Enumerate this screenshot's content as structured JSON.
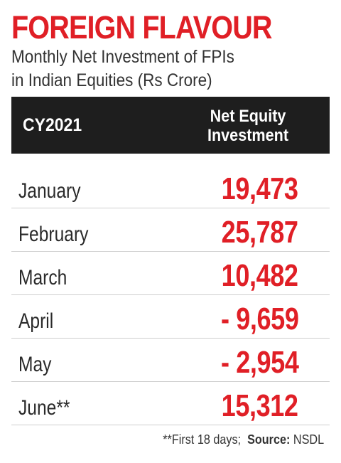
{
  "title": "FOREIGN FLAVOUR",
  "subtitle_line1": "Monthly Net Investment of FPIs",
  "subtitle_line2": "in Indian Equities (Rs Crore)",
  "colors": {
    "accent": "#e01f26",
    "header_bg": "#1e1e1e",
    "header_text": "#ffffff",
    "row_divider": "#cfcfcf"
  },
  "chart_data": {
    "type": "table",
    "title": "FOREIGN FLAVOUR",
    "subtitle": "Monthly Net Investment of FPIs in Indian Equities (Rs Crore)",
    "columns": [
      "CY2021",
      "Net Equity Investment"
    ],
    "header_col1": "CY2021",
    "header_col2_line1": "Net Equity",
    "header_col2_line2": "Investment",
    "rows": [
      {
        "month": "January",
        "value_display": "19,473",
        "value": 19473
      },
      {
        "month": "February",
        "value_display": "25,787",
        "value": 25787
      },
      {
        "month": "March",
        "value_display": "10,482",
        "value": 10482
      },
      {
        "month": "April",
        "value_display": "- 9,659",
        "value": -9659
      },
      {
        "month": "May",
        "value_display": "- 2,954",
        "value": -2954
      },
      {
        "month": "June**",
        "value_display": "15,312",
        "value": 15312
      }
    ]
  },
  "footnote": {
    "note": "**First 18 days;",
    "source_label": "Source:",
    "source_value": "NSDL"
  }
}
